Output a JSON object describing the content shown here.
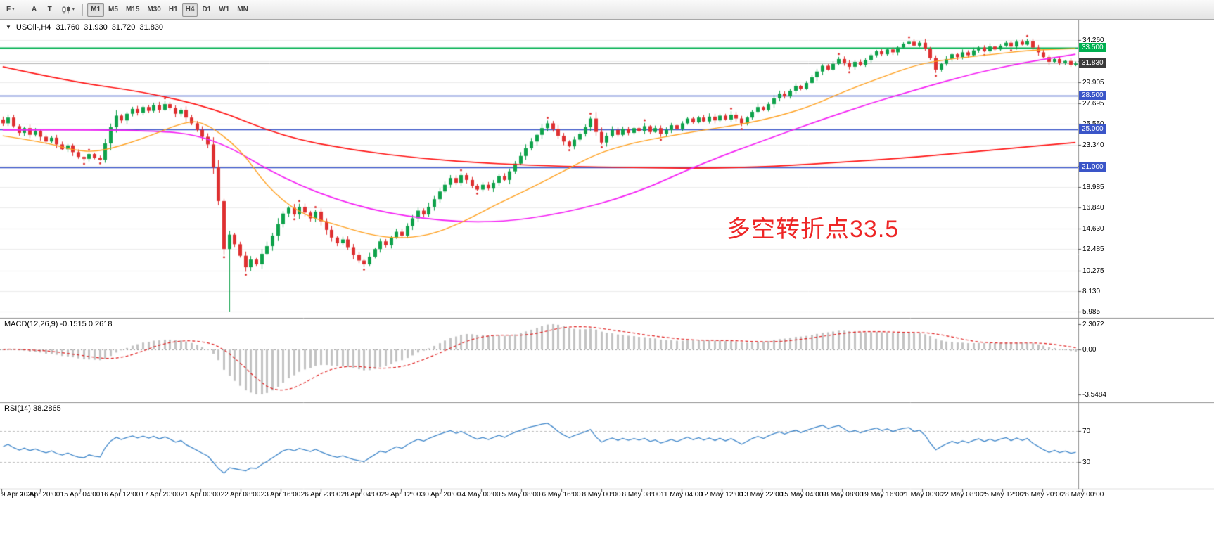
{
  "icons": {
    "dropdown_triangle": "▼",
    "caret": "▾"
  },
  "toolbar": {
    "file_button_label": "F",
    "annotate_button_label": "A",
    "text_button_label": "T",
    "chart_type_icon": "candlestick-chart-icon",
    "timeframes": [
      {
        "label": "M1",
        "pressed": true
      },
      {
        "label": "M5",
        "pressed": false
      },
      {
        "label": "M15",
        "pressed": false
      },
      {
        "label": "M30",
        "pressed": false
      },
      {
        "label": "H1",
        "pressed": false
      },
      {
        "label": "H4",
        "pressed": true
      },
      {
        "label": "D1",
        "pressed": false
      },
      {
        "label": "W1",
        "pressed": false
      },
      {
        "label": "MN",
        "pressed": false
      }
    ]
  },
  "chart_header": {
    "symbol_period": "USOil-,H4",
    "open": "31.760",
    "high": "31.930",
    "low": "31.720",
    "close": "31.830"
  },
  "annotation": {
    "text": "多空转折点33.5",
    "color": "#ee2626"
  },
  "price_axis": {
    "ticks": [
      {
        "value": 34.26,
        "label": "34.260"
      },
      {
        "value": 32.105,
        "label": ""
      },
      {
        "value": 29.905,
        "label": "29.905"
      },
      {
        "value": 27.695,
        "label": "27.695"
      },
      {
        "value": 25.55,
        "label": "25.550"
      },
      {
        "value": 23.34,
        "label": "23.340"
      },
      {
        "value": 21.13,
        "label": ""
      },
      {
        "value": 18.985,
        "label": "18.985"
      },
      {
        "value": 16.84,
        "label": "16.840"
      },
      {
        "value": 14.63,
        "label": "14.630"
      },
      {
        "value": 12.485,
        "label": "12.485"
      },
      {
        "value": 10.275,
        "label": "10.275"
      },
      {
        "value": 8.13,
        "label": "8.130"
      },
      {
        "value": 5.985,
        "label": "5.985"
      }
    ],
    "line_labels": [
      {
        "value": 33.5,
        "label": "33.500",
        "bg": "#00b050"
      },
      {
        "value": 28.5,
        "label": "28.500",
        "bg": "#3a55c8"
      },
      {
        "value": 25.0,
        "label": "25.000",
        "bg": "#3a55c8"
      },
      {
        "value": 21.0,
        "label": "21.000",
        "bg": "#3a55c8"
      }
    ],
    "current_price": {
      "value": 31.83,
      "label": "31.830",
      "bg": "#3a3a3a"
    }
  },
  "hlines": [
    {
      "value": 33.5,
      "color": "#00b050",
      "width": 2
    },
    {
      "value": 28.5,
      "color": "#3a55c8",
      "width": 1.4
    },
    {
      "value": 25.0,
      "color": "#3a55c8",
      "width": 1.4
    },
    {
      "value": 21.0,
      "color": "#3a55c8",
      "width": 1.4
    }
  ],
  "macd_panel": {
    "label": "MACD(12,26,9) -0.1515 0.2618",
    "axis_labels": [
      "2.3072",
      "0.00",
      "-3.5484"
    ]
  },
  "rsi_panel": {
    "label": "RSI(14) 38.2865",
    "levels": [
      {
        "value": 70,
        "label": "70"
      },
      {
        "value": 30,
        "label": "30"
      }
    ]
  },
  "time_axis": {
    "labels": [
      "9 Apr 2020",
      "13 Apr 20:00",
      "15 Apr 04:00",
      "16 Apr 12:00",
      "17 Apr 20:00",
      "21 Apr 00:00",
      "22 Apr 08:00",
      "23 Apr 16:00",
      "26 Apr 23:00",
      "28 Apr 04:00",
      "29 Apr 12:00",
      "30 Apr 20:00",
      "4 May 00:00",
      "5 May 08:00",
      "6 May 16:00",
      "8 May 00:00",
      "8 May 08:00",
      "11 May 04:00",
      "12 May 12:00",
      "13 May 22:00",
      "15 May 04:00",
      "18 May 08:00",
      "19 May 16:00",
      "21 May 00:00",
      "22 May 08:00",
      "25 May 12:00",
      "26 May 20:00",
      "28 May 00:00"
    ]
  },
  "colors": {
    "bull": "#0fa24b",
    "bear": "#de3031",
    "grid": "#ececec",
    "separator": "#909090",
    "current_price_line": "#b5b5b5",
    "macd_hist": "#c2c2c2",
    "macd_signal": "#e02020",
    "rsi_line": "#3e86ca",
    "level_line": "#bcbcbc",
    "fractal_dot": "#e03030"
  },
  "chart_data": {
    "type": "candlestick",
    "symbol": "USOil-",
    "timeframe": "H4",
    "title": "USOil-,H4 31.760 31.930 31.720 31.830",
    "ylim": [
      5.33,
      36.4
    ],
    "first_open": 26.0,
    "closes": [
      25.6,
      26.2,
      25.3,
      24.6,
      25.1,
      24.4,
      24.8,
      24.2,
      23.7,
      24.1,
      23.4,
      22.9,
      23.3,
      22.6,
      22.1,
      21.9,
      22.4,
      22.0,
      21.8,
      23.5,
      25.2,
      26.4,
      25.9,
      26.6,
      27.1,
      26.7,
      27.3,
      26.9,
      27.5,
      27.0,
      27.6,
      27.2,
      26.6,
      27.0,
      26.2,
      25.6,
      24.9,
      24.2,
      23.4,
      21.0,
      17.5,
      12.5,
      14.0,
      13.0,
      11.8,
      10.6,
      11.4,
      10.9,
      12.0,
      12.8,
      13.9,
      15.1,
      16.2,
      16.8,
      16.1,
      16.9,
      16.3,
      15.7,
      16.4,
      15.4,
      14.5,
      13.7,
      13.1,
      13.5,
      12.7,
      11.9,
      11.3,
      10.9,
      11.7,
      12.5,
      13.3,
      12.9,
      13.7,
      14.3,
      13.9,
      14.9,
      15.7,
      16.5,
      16.1,
      16.9,
      17.7,
      18.5,
      19.2,
      19.9,
      19.4,
      20.2,
      19.7,
      19.1,
      18.7,
      19.2,
      18.8,
      19.4,
      20.1,
      19.7,
      20.6,
      21.4,
      22.2,
      23.0,
      23.7,
      24.4,
      25.1,
      25.6,
      25.0,
      24.3,
      23.7,
      23.2,
      23.9,
      24.5,
      25.2,
      26.1,
      24.7,
      23.6,
      24.3,
      24.9,
      24.4,
      25.0,
      24.6,
      25.1,
      24.8,
      25.3,
      24.7,
      25.1,
      24.5,
      24.9,
      25.4,
      25.0,
      25.6,
      26.1,
      25.7,
      26.2,
      25.8,
      26.3,
      25.9,
      26.4,
      26.0,
      26.5,
      26.1,
      25.6,
      26.2,
      26.8,
      27.3,
      27.0,
      27.6,
      28.2,
      28.7,
      28.4,
      29.0,
      29.5,
      29.2,
      29.8,
      30.4,
      31.0,
      31.6,
      31.2,
      31.8,
      32.3,
      31.9,
      31.5,
      32.0,
      31.7,
      32.2,
      32.7,
      33.1,
      32.8,
      33.3,
      33.0,
      33.5,
      33.9,
      34.1,
      33.7,
      34.0,
      33.4,
      32.4,
      31.2,
      31.8,
      32.3,
      32.8,
      32.5,
      33.0,
      32.7,
      33.2,
      33.5,
      33.1,
      33.6,
      33.3,
      33.7,
      34.0,
      33.6,
      34.1,
      33.8,
      34.15,
      33.5,
      33.0,
      32.5,
      32.0,
      32.3,
      31.9,
      32.1,
      31.7,
      31.83
    ],
    "special_lows": {
      "42": 5.985
    },
    "hlines": [
      33.5,
      28.5,
      25.0,
      21.0
    ],
    "moving_averages": [
      {
        "name": "ma-slow-red",
        "color": "#ff1414",
        "points": [
          [
            0,
            31.5
          ],
          [
            13,
            29.9
          ],
          [
            26,
            28.9
          ],
          [
            39,
            27.2
          ],
          [
            52,
            24.2
          ],
          [
            65,
            22.8
          ],
          [
            78,
            21.9
          ],
          [
            91,
            21.4
          ],
          [
            104,
            21.1
          ],
          [
            117,
            21.0
          ],
          [
            130,
            20.9
          ],
          [
            143,
            21.1
          ],
          [
            157,
            21.6
          ],
          [
            170,
            22.1
          ],
          [
            183,
            22.8
          ],
          [
            199,
            23.6
          ]
        ]
      },
      {
        "name": "ma-mid-magenta",
        "color": "#f520f5",
        "points": [
          [
            0,
            24.9
          ],
          [
            26,
            25.0
          ],
          [
            39,
            24.2
          ],
          [
            52,
            19.8
          ],
          [
            65,
            17.0
          ],
          [
            78,
            15.6
          ],
          [
            91,
            15.2
          ],
          [
            104,
            16.2
          ],
          [
            117,
            18.2
          ],
          [
            130,
            21.5
          ],
          [
            143,
            24.2
          ],
          [
            152,
            26.0
          ],
          [
            161,
            27.7
          ],
          [
            170,
            29.2
          ],
          [
            180,
            30.8
          ],
          [
            190,
            32.0
          ],
          [
            199,
            32.8
          ]
        ]
      },
      {
        "name": "ma-fast-orange",
        "color": "#ffa01e",
        "points": [
          [
            0,
            24.3
          ],
          [
            8,
            23.6
          ],
          [
            13,
            22.8
          ],
          [
            18,
            22.6
          ],
          [
            26,
            24.0
          ],
          [
            33,
            25.6
          ],
          [
            37,
            25.9
          ],
          [
            44,
            23.0
          ],
          [
            49,
            19.0
          ],
          [
            55,
            16.2
          ],
          [
            62,
            15.0
          ],
          [
            68,
            14.0
          ],
          [
            73,
            13.6
          ],
          [
            79,
            13.9
          ],
          [
            85,
            15.2
          ],
          [
            91,
            17.0
          ],
          [
            97,
            18.6
          ],
          [
            104,
            20.6
          ],
          [
            110,
            22.4
          ],
          [
            117,
            23.6
          ],
          [
            124,
            24.3
          ],
          [
            130,
            24.9
          ],
          [
            137,
            25.5
          ],
          [
            143,
            26.2
          ],
          [
            150,
            27.4
          ],
          [
            156,
            28.9
          ],
          [
            163,
            30.4
          ],
          [
            170,
            31.8
          ],
          [
            177,
            32.4
          ],
          [
            184,
            32.8
          ],
          [
            190,
            33.2
          ],
          [
            199,
            33.4
          ]
        ]
      }
    ],
    "macd": {
      "fast": 12,
      "slow": 26,
      "signal": 9,
      "display_values": [
        -0.1515,
        0.2618
      ],
      "axis_range": [
        2.3072,
        -3.5484
      ]
    },
    "rsi": {
      "period": 14,
      "current": 38.2865,
      "levels": [
        70,
        30
      ]
    }
  }
}
